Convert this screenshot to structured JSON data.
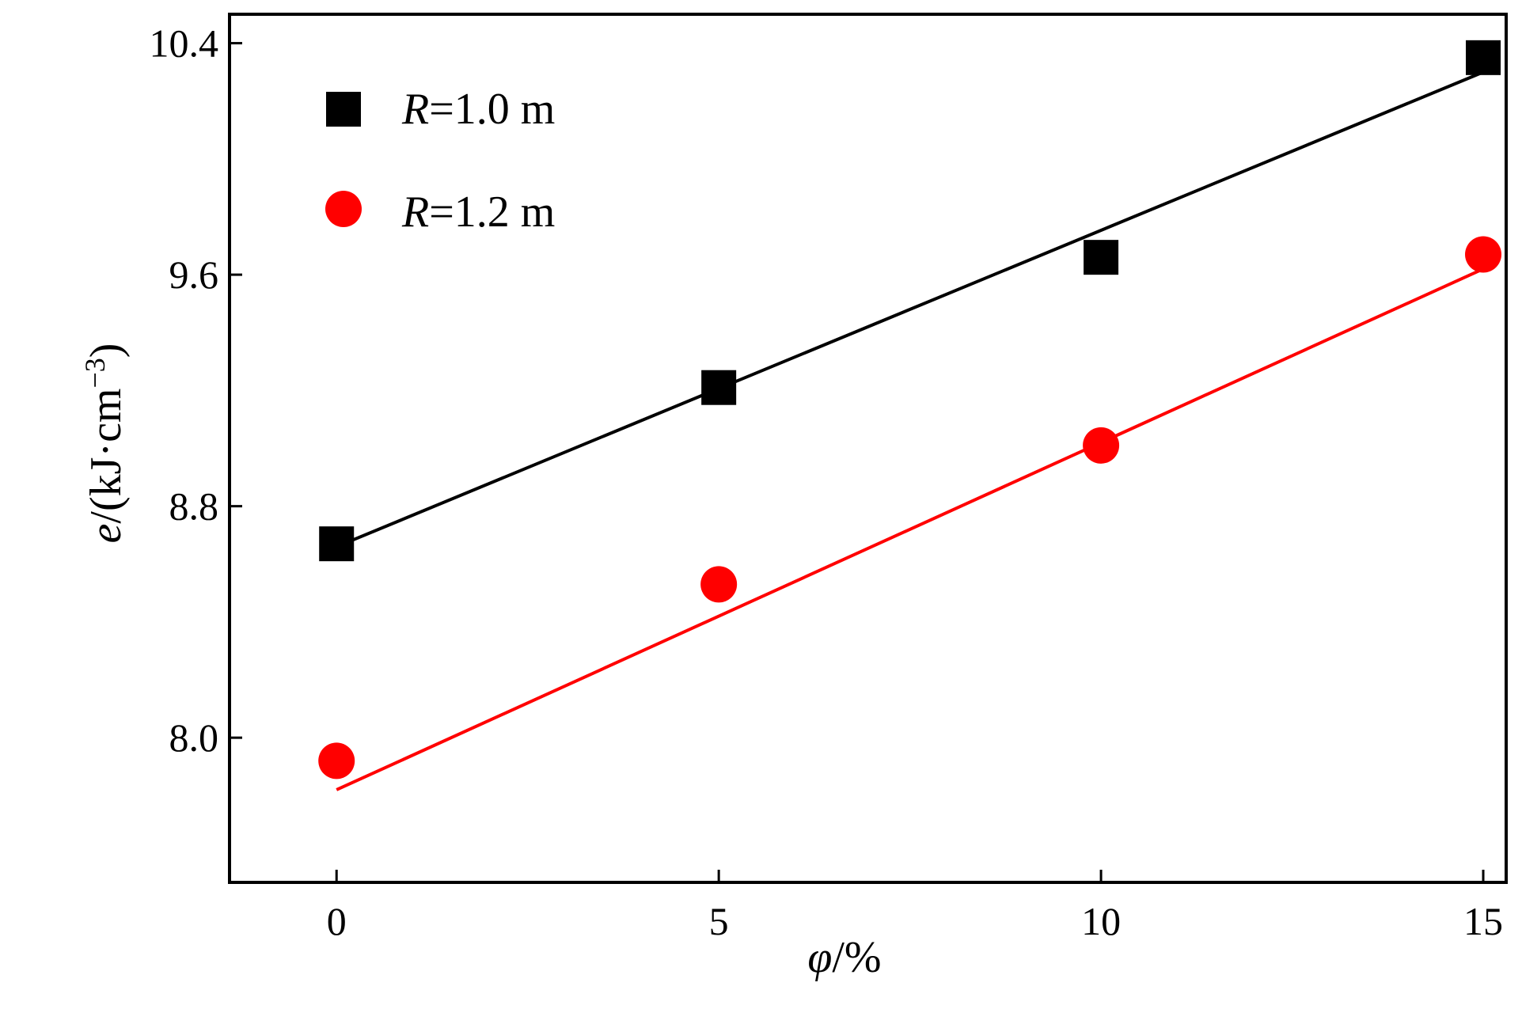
{
  "chart_data": {
    "type": "scatter",
    "title": "",
    "xlabel": {
      "symbol": "φ",
      "unit": "/%"
    },
    "ylabel": {
      "symbol": "e",
      "unit_prefix": "/(kJ·cm",
      "unit_exp": "−3",
      "unit_suffix": ")"
    },
    "xlim": [
      -1.4,
      15.3
    ],
    "ylim": [
      7.5,
      10.5
    ],
    "x_ticks": [
      0,
      5,
      10,
      15
    ],
    "x_tick_labels": [
      "0",
      "5",
      "10",
      "15"
    ],
    "y_ticks": [
      8.0,
      8.8,
      9.6,
      10.4
    ],
    "y_tick_labels": [
      "8.0",
      "8.8",
      "9.6",
      "10.4"
    ],
    "grid": false,
    "legend_position": "top-left",
    "series": [
      {
        "name": "R=1.0 m",
        "name_symbol": "R",
        "name_rest": "=1.0 m",
        "marker": "square",
        "color": "#000000",
        "x": [
          0,
          5,
          10,
          15
        ],
        "y": [
          8.67,
          9.21,
          9.66,
          10.35
        ],
        "fit": {
          "x": [
            0,
            15
          ],
          "y": [
            8.66,
            10.3
          ]
        }
      },
      {
        "name": "R=1.2 m",
        "name_symbol": "R",
        "name_rest": "=1.2 m",
        "marker": "circle",
        "color": "#ff0000",
        "x": [
          0,
          5,
          10,
          15
        ],
        "y": [
          7.92,
          8.53,
          9.01,
          9.67
        ],
        "fit": {
          "x": [
            0,
            15
          ],
          "y": [
            7.82,
            9.62
          ]
        }
      }
    ]
  }
}
